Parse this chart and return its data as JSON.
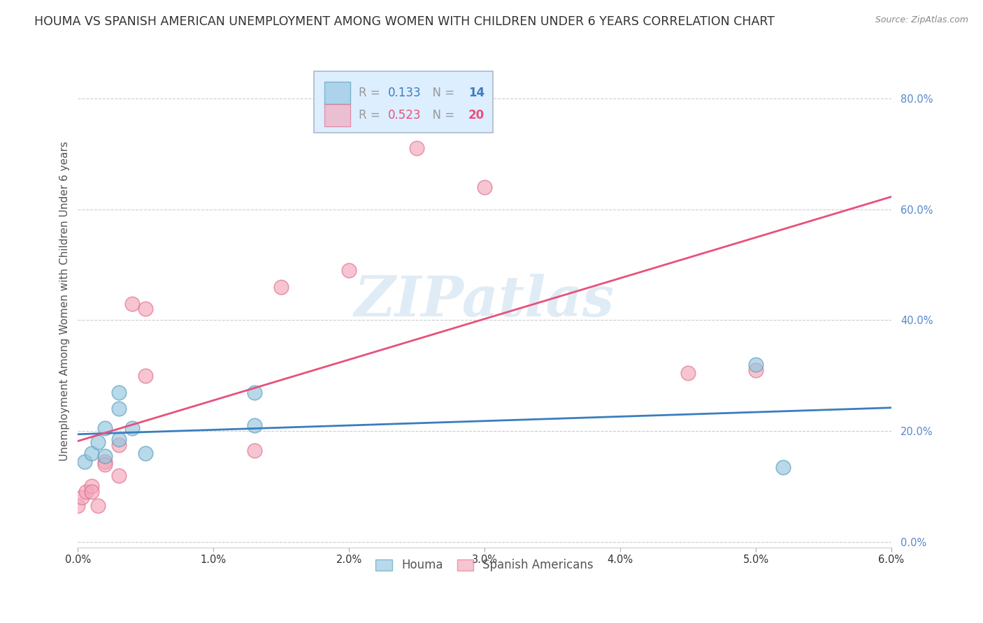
{
  "title": "HOUMA VS SPANISH AMERICAN UNEMPLOYMENT AMONG WOMEN WITH CHILDREN UNDER 6 YEARS CORRELATION CHART",
  "source": "Source: ZipAtlas.com",
  "ylabel": "Unemployment Among Women with Children Under 6 years",
  "xlim": [
    0.0,
    0.06
  ],
  "ylim": [
    -0.01,
    0.88
  ],
  "yticks": [
    0.0,
    0.2,
    0.4,
    0.6,
    0.8
  ],
  "ytick_labels": [
    "0.0%",
    "20.0%",
    "40.0%",
    "60.0%",
    "80.0%"
  ],
  "xticks": [
    0.0,
    0.01,
    0.02,
    0.03,
    0.04,
    0.05,
    0.06
  ],
  "xtick_labels": [
    "0.0%",
    "1.0%",
    "2.0%",
    "3.0%",
    "4.0%",
    "5.0%",
    "6.0%"
  ],
  "houma_R": 0.133,
  "houma_N": 14,
  "spanish_R": 0.523,
  "spanish_N": 20,
  "houma_color": "#92c5de",
  "houma_edge_color": "#5b9dbf",
  "spanish_color": "#f4a6bb",
  "spanish_edge_color": "#e07090",
  "houma_line_color": "#3a7dbf",
  "spanish_line_color": "#e8507a",
  "ytick_color": "#5588cc",
  "xtick_color": "#333333",
  "legend_box_color": "#ddeeff",
  "legend_border_color": "#aabbcc",
  "watermark_color": "#cce0ef",
  "background_color": "#ffffff",
  "grid_color": "#cccccc",
  "title_fontsize": 12.5,
  "ylabel_fontsize": 11,
  "tick_fontsize": 10.5,
  "legend_fontsize": 12,
  "marker_size": 220,
  "houma_x": [
    0.0005,
    0.001,
    0.0015,
    0.002,
    0.002,
    0.003,
    0.003,
    0.003,
    0.004,
    0.005,
    0.013,
    0.013,
    0.05,
    0.052
  ],
  "houma_y": [
    0.145,
    0.16,
    0.18,
    0.155,
    0.205,
    0.24,
    0.185,
    0.27,
    0.205,
    0.16,
    0.27,
    0.21,
    0.32,
    0.135
  ],
  "spanish_x": [
    0.0,
    0.0003,
    0.0006,
    0.001,
    0.001,
    0.0015,
    0.002,
    0.002,
    0.003,
    0.003,
    0.004,
    0.005,
    0.005,
    0.013,
    0.015,
    0.02,
    0.025,
    0.03,
    0.045,
    0.05
  ],
  "spanish_y": [
    0.065,
    0.08,
    0.09,
    0.1,
    0.09,
    0.065,
    0.145,
    0.14,
    0.12,
    0.175,
    0.43,
    0.3,
    0.42,
    0.165,
    0.46,
    0.49,
    0.71,
    0.64,
    0.305,
    0.31
  ]
}
